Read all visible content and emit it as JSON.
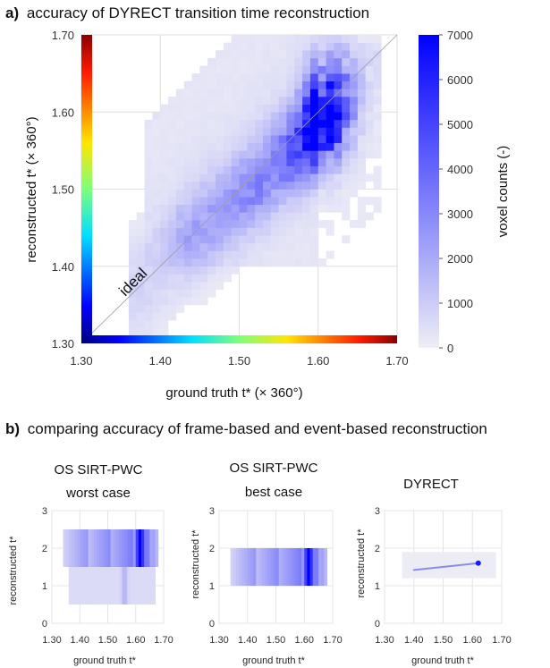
{
  "chart_data": [
    {
      "panel_letter": "a)",
      "title": "accuracy of DYRECT transition time reconstruction",
      "type": "heatmap",
      "xlabel": "ground truth t* (× 360°)",
      "ylabel": "reconstructed t* (× 360°)",
      "xlim": [
        1.3,
        1.7
      ],
      "ylim": [
        1.3,
        1.7
      ],
      "xticks": [
        "1.30",
        "1.40",
        "1.50",
        "1.60",
        "1.70"
      ],
      "yticks": [
        "1.30",
        "1.40",
        "1.50",
        "1.60",
        "1.70"
      ],
      "grid": true,
      "diagonal_label": "ideal",
      "colorbar": {
        "label": "voxel counts (-)",
        "ticks": [
          "0",
          "1000",
          "2000",
          "3000",
          "4000",
          "5000",
          "6000",
          "7000"
        ],
        "range": [
          0,
          7000
        ]
      },
      "hotspots": [
        {
          "x": 1.615,
          "y": 1.6,
          "value": 7000
        },
        {
          "x": 1.61,
          "y": 1.58,
          "value": 5200
        },
        {
          "x": 1.62,
          "y": 1.64,
          "value": 4200
        },
        {
          "x": 1.59,
          "y": 1.56,
          "value": 3000
        },
        {
          "x": 1.56,
          "y": 1.54,
          "value": 2400
        },
        {
          "x": 1.52,
          "y": 1.5,
          "value": 1800
        },
        {
          "x": 1.48,
          "y": 1.47,
          "value": 1400
        },
        {
          "x": 1.44,
          "y": 1.44,
          "value": 1000
        }
      ]
    },
    {
      "panel_letter": "b)",
      "title": "comparing accuracy of frame-based and event-based reconstruction",
      "subplots": [
        {
          "title_lines": [
            "OS SIRT-PWC",
            "worst case"
          ],
          "type": "heatmap",
          "xlabel": "ground truth t*",
          "ylabel": "reconstructed t*",
          "xlim": [
            1.3,
            1.7
          ],
          "ylim": [
            0,
            3
          ],
          "xticks": [
            "1.30",
            "1.40",
            "1.50",
            "1.60",
            "1.70"
          ],
          "yticks": [
            "0",
            "1",
            "2",
            "3"
          ],
          "bands": [
            {
              "y_from": 1.5,
              "y_to": 2.5,
              "x_from": 1.34,
              "x_to": 1.68,
              "peak_x": 1.615
            },
            {
              "y_from": 0.5,
              "y_to": 1.5,
              "x_from": 1.36,
              "x_to": 1.67,
              "peak_x": 1.56
            }
          ]
        },
        {
          "title_lines": [
            "OS SIRT-PWC",
            "best case"
          ],
          "type": "heatmap",
          "xlabel": "ground truth t*",
          "ylabel": "reconstructed t*",
          "xlim": [
            1.3,
            1.7
          ],
          "ylim": [
            0,
            3
          ],
          "xticks": [
            "1.30",
            "1.40",
            "1.50",
            "1.60",
            "1.70"
          ],
          "yticks": [
            "0",
            "1",
            "2",
            "3"
          ],
          "bands": [
            {
              "y_from": 1.0,
              "y_to": 2.0,
              "x_from": 1.34,
              "x_to": 1.68,
              "peak_x": 1.615
            }
          ]
        },
        {
          "title_lines": [
            "DYRECT"
          ],
          "type": "heatmap",
          "xlabel": "ground truth t*",
          "ylabel": "reconstructed t*",
          "xlim": [
            1.3,
            1.7
          ],
          "ylim": [
            0,
            3
          ],
          "xticks": [
            "1.30",
            "1.40",
            "1.50",
            "1.60",
            "1.70"
          ],
          "yticks": [
            "0",
            "1",
            "2",
            "3"
          ],
          "cloud": {
            "x_from": 1.36,
            "x_to": 1.68,
            "y_from": 1.2,
            "y_to": 1.9,
            "peak": {
              "x": 1.62,
              "y": 1.6
            }
          }
        }
      ]
    }
  ],
  "colors": {
    "heat_high": "#0000ff",
    "heat_low": "#eeeef6",
    "grid": "#dedede"
  }
}
